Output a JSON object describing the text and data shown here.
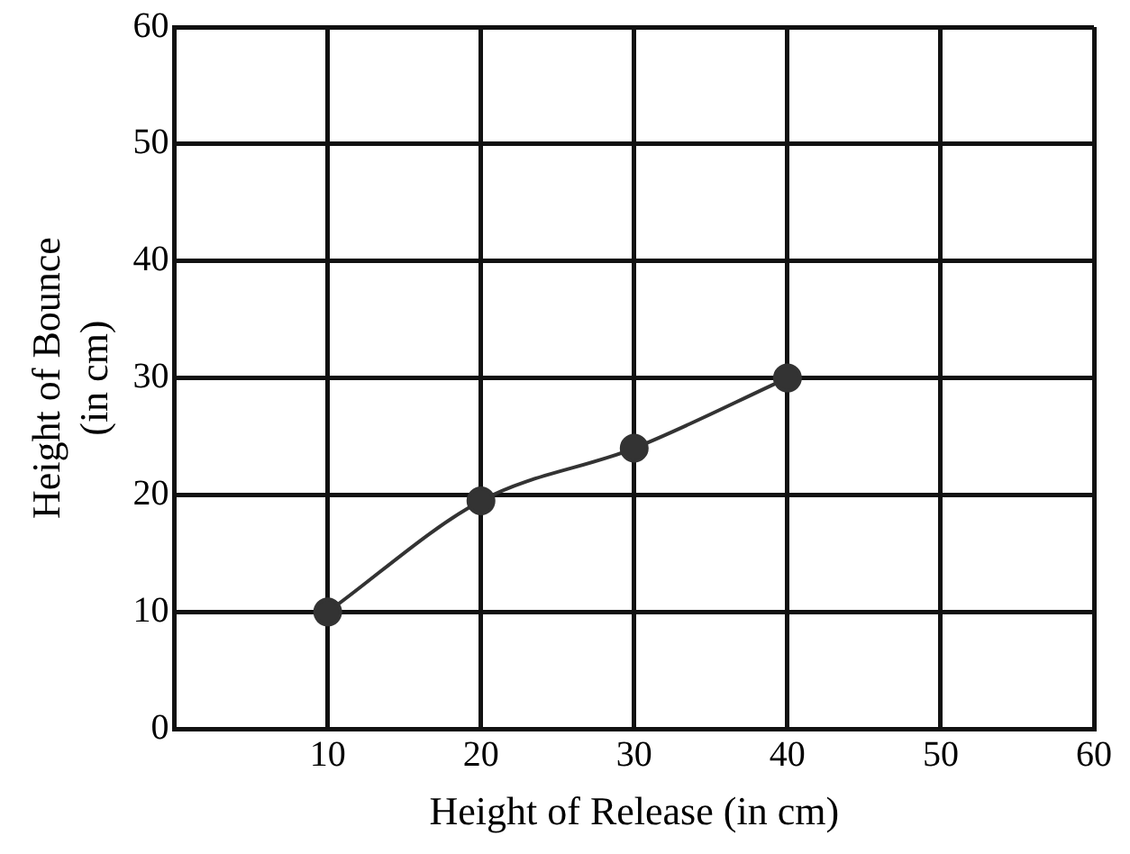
{
  "chart_data": {
    "type": "line",
    "xlabel": "Height of Release (in cm)",
    "ylabel": "Height of Bounce\n(in cm)",
    "x": [
      10,
      20,
      30,
      40
    ],
    "series": [
      {
        "color": "#333333",
        "values": [
          10,
          19.5,
          24,
          30
        ]
      }
    ],
    "xlim": [
      0,
      60
    ],
    "xticks": [
      {
        "value": 0,
        "label": null
      },
      10,
      20,
      30,
      40,
      50,
      60
    ],
    "ylim": [
      0,
      60
    ],
    "yticks": [
      0,
      10,
      20,
      30,
      40,
      50,
      60
    ],
    "grid": true,
    "legend": false,
    "marker": "circle",
    "line_style": "solid"
  }
}
